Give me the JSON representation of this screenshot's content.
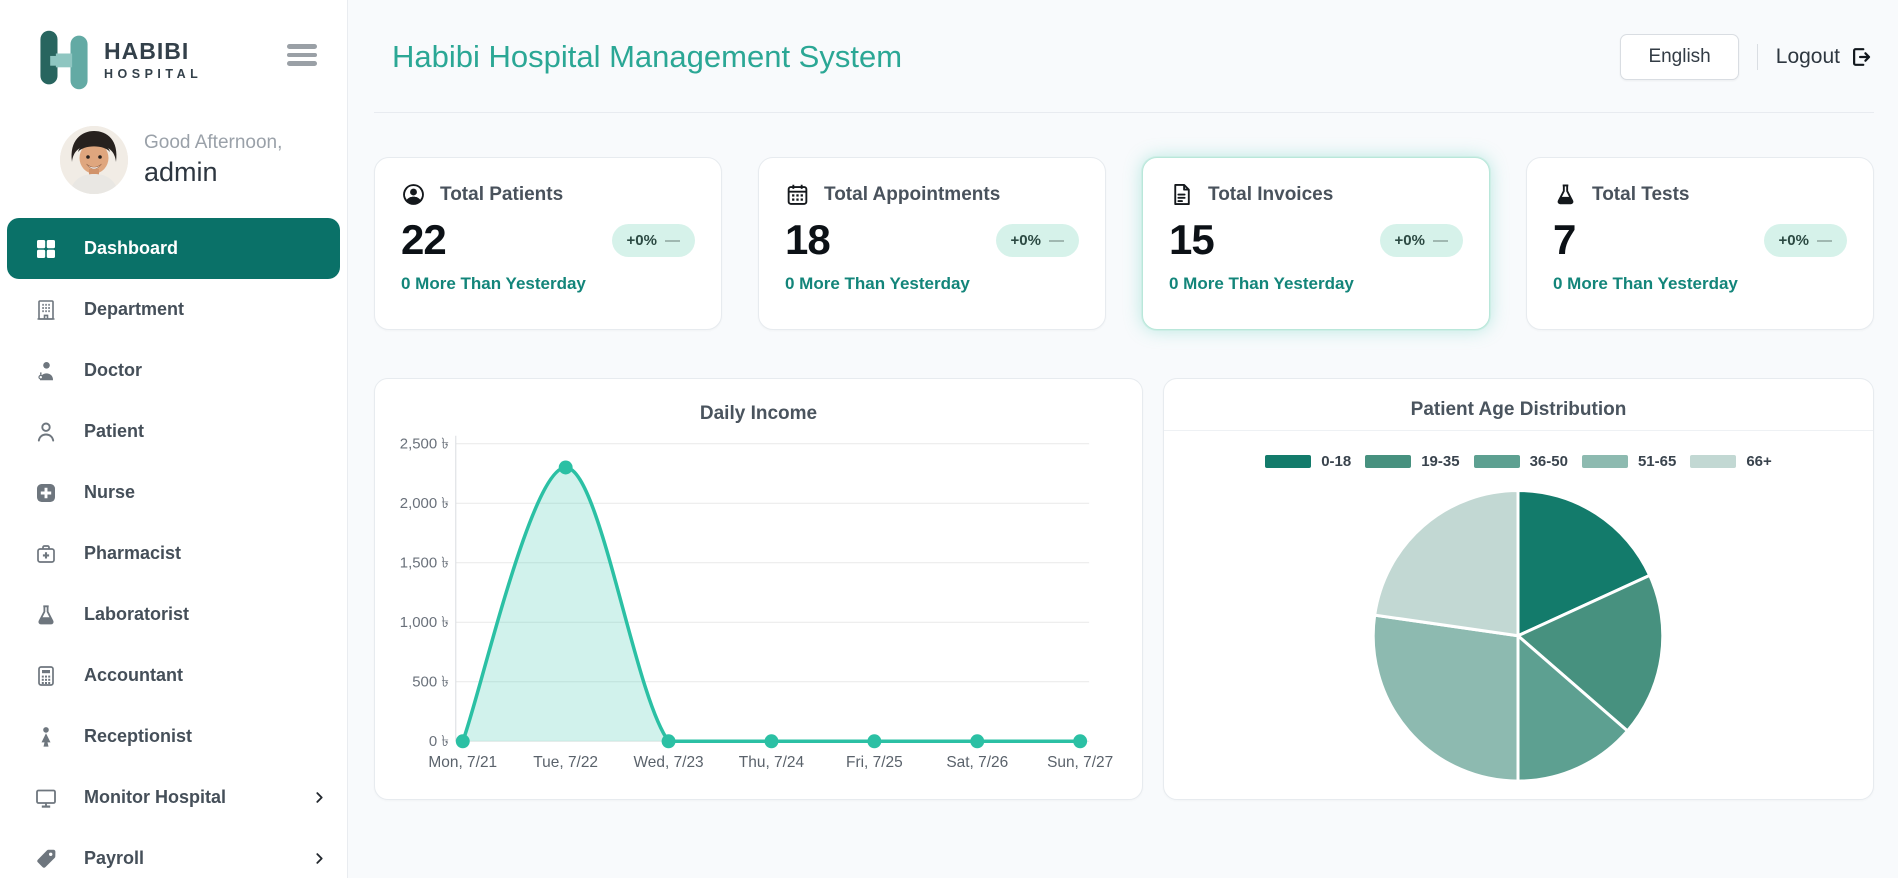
{
  "brand": {
    "line1": "HABIBI",
    "line2": "HOSPITAL"
  },
  "sidebar": {
    "greeting": "Good Afternoon,",
    "username": "admin",
    "items": [
      {
        "label": "Dashboard",
        "icon": "dashboard-grid-icon",
        "active": true,
        "chevron": false
      },
      {
        "label": "Department",
        "icon": "building-icon",
        "active": false,
        "chevron": false
      },
      {
        "label": "Doctor",
        "icon": "doctor-icon",
        "active": false,
        "chevron": false
      },
      {
        "label": "Patient",
        "icon": "patient-icon",
        "active": false,
        "chevron": false
      },
      {
        "label": "Nurse",
        "icon": "nurse-cross-icon",
        "active": false,
        "chevron": false
      },
      {
        "label": "Pharmacist",
        "icon": "medkit-icon",
        "active": false,
        "chevron": false
      },
      {
        "label": "Laboratorist",
        "icon": "flask-icon",
        "active": false,
        "chevron": false
      },
      {
        "label": "Accountant",
        "icon": "calculator-icon",
        "active": false,
        "chevron": false
      },
      {
        "label": "Receptionist",
        "icon": "receptionist-icon",
        "active": false,
        "chevron": false
      },
      {
        "label": "Monitor Hospital",
        "icon": "monitor-icon",
        "active": false,
        "chevron": true
      },
      {
        "label": "Payroll",
        "icon": "tag-icon",
        "active": false,
        "chevron": true
      }
    ]
  },
  "header": {
    "title": "Habibi Hospital Management System",
    "language_button": "English",
    "logout_label": "Logout"
  },
  "stats": [
    {
      "icon": "person-circle-icon",
      "title": "Total Patients",
      "value": "22",
      "badge": "+0%",
      "trend": "—",
      "note": "0 More Than Yesterday",
      "highlight": false
    },
    {
      "icon": "calendar-icon",
      "title": "Total Appointments",
      "value": "18",
      "badge": "+0%",
      "trend": "—",
      "note": "0 More Than Yesterday",
      "highlight": false
    },
    {
      "icon": "invoice-icon",
      "title": "Total Invoices",
      "value": "15",
      "badge": "+0%",
      "trend": "—",
      "note": "0 More Than Yesterday",
      "highlight": true
    },
    {
      "icon": "test-flask-icon",
      "title": "Total Tests",
      "value": "7",
      "badge": "+0%",
      "trend": "—",
      "note": "0 More Than Yesterday",
      "highlight": false
    }
  ],
  "chart_data": [
    {
      "type": "line",
      "title": "Daily Income",
      "x": [
        "Mon, 7/21",
        "Tue, 7/22",
        "Wed, 7/23",
        "Thu, 7/24",
        "Fri, 7/25",
        "Sat, 7/26",
        "Sun, 7/27"
      ],
      "values": [
        0,
        2300,
        0,
        0,
        0,
        0,
        0
      ],
      "ylim": [
        0,
        2500
      ],
      "ytick_step": 500,
      "currency": "৳",
      "line_color": "#2bc0a4",
      "fill_color": "rgba(46,196,167,0.22)",
      "grid": true,
      "legend_position": "none"
    },
    {
      "type": "pie",
      "title": "Patient Age Distribution",
      "categories": [
        "0-18",
        "19-35",
        "36-50",
        "51-65",
        "66+"
      ],
      "values": [
        4,
        4,
        3,
        6,
        5
      ],
      "colors": [
        "#137b6b",
        "#47917f",
        "#5da091",
        "#8dbab0",
        "#c2d8d3"
      ],
      "legend_position": "top",
      "start_angle": 0,
      "direction": "clockwise"
    }
  ],
  "colors": {
    "accent": "#2ba795",
    "active_item_bg": "#0a7168",
    "badge_bg": "#d6f2ea",
    "note_text": "#13857a",
    "line": "#2bc0a4"
  }
}
